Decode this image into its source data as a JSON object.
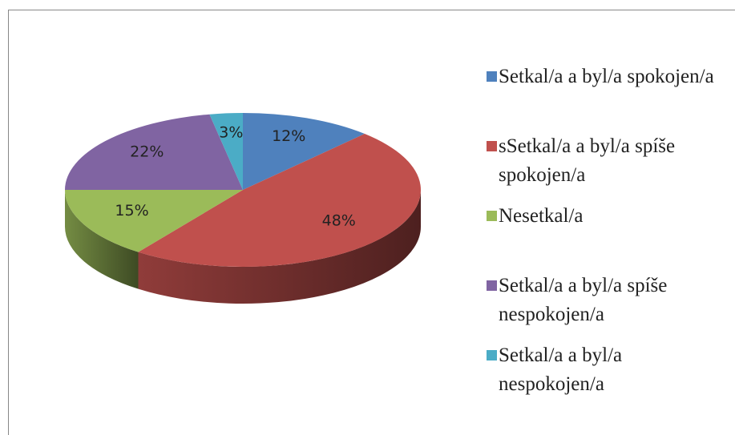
{
  "chart_data": {
    "type": "pie",
    "categories": [
      "Setkal/a a byl/a spokojen/a",
      "sSetkal/a a byl/a spíše spokojen/a",
      "Nesetkal/a",
      "Setkal/a a byl/a spíše nespokojen/a",
      "Setkal/a a byl/a nespokojen/a"
    ],
    "values": [
      12,
      48,
      15,
      22,
      3
    ],
    "value_labels": [
      "12%",
      "48%",
      "15%",
      "22%",
      "3%"
    ],
    "colors": [
      "#4f81bd",
      "#c0504d",
      "#9bbb59",
      "#8064a2",
      "#4bacc6"
    ],
    "legend": "right"
  }
}
